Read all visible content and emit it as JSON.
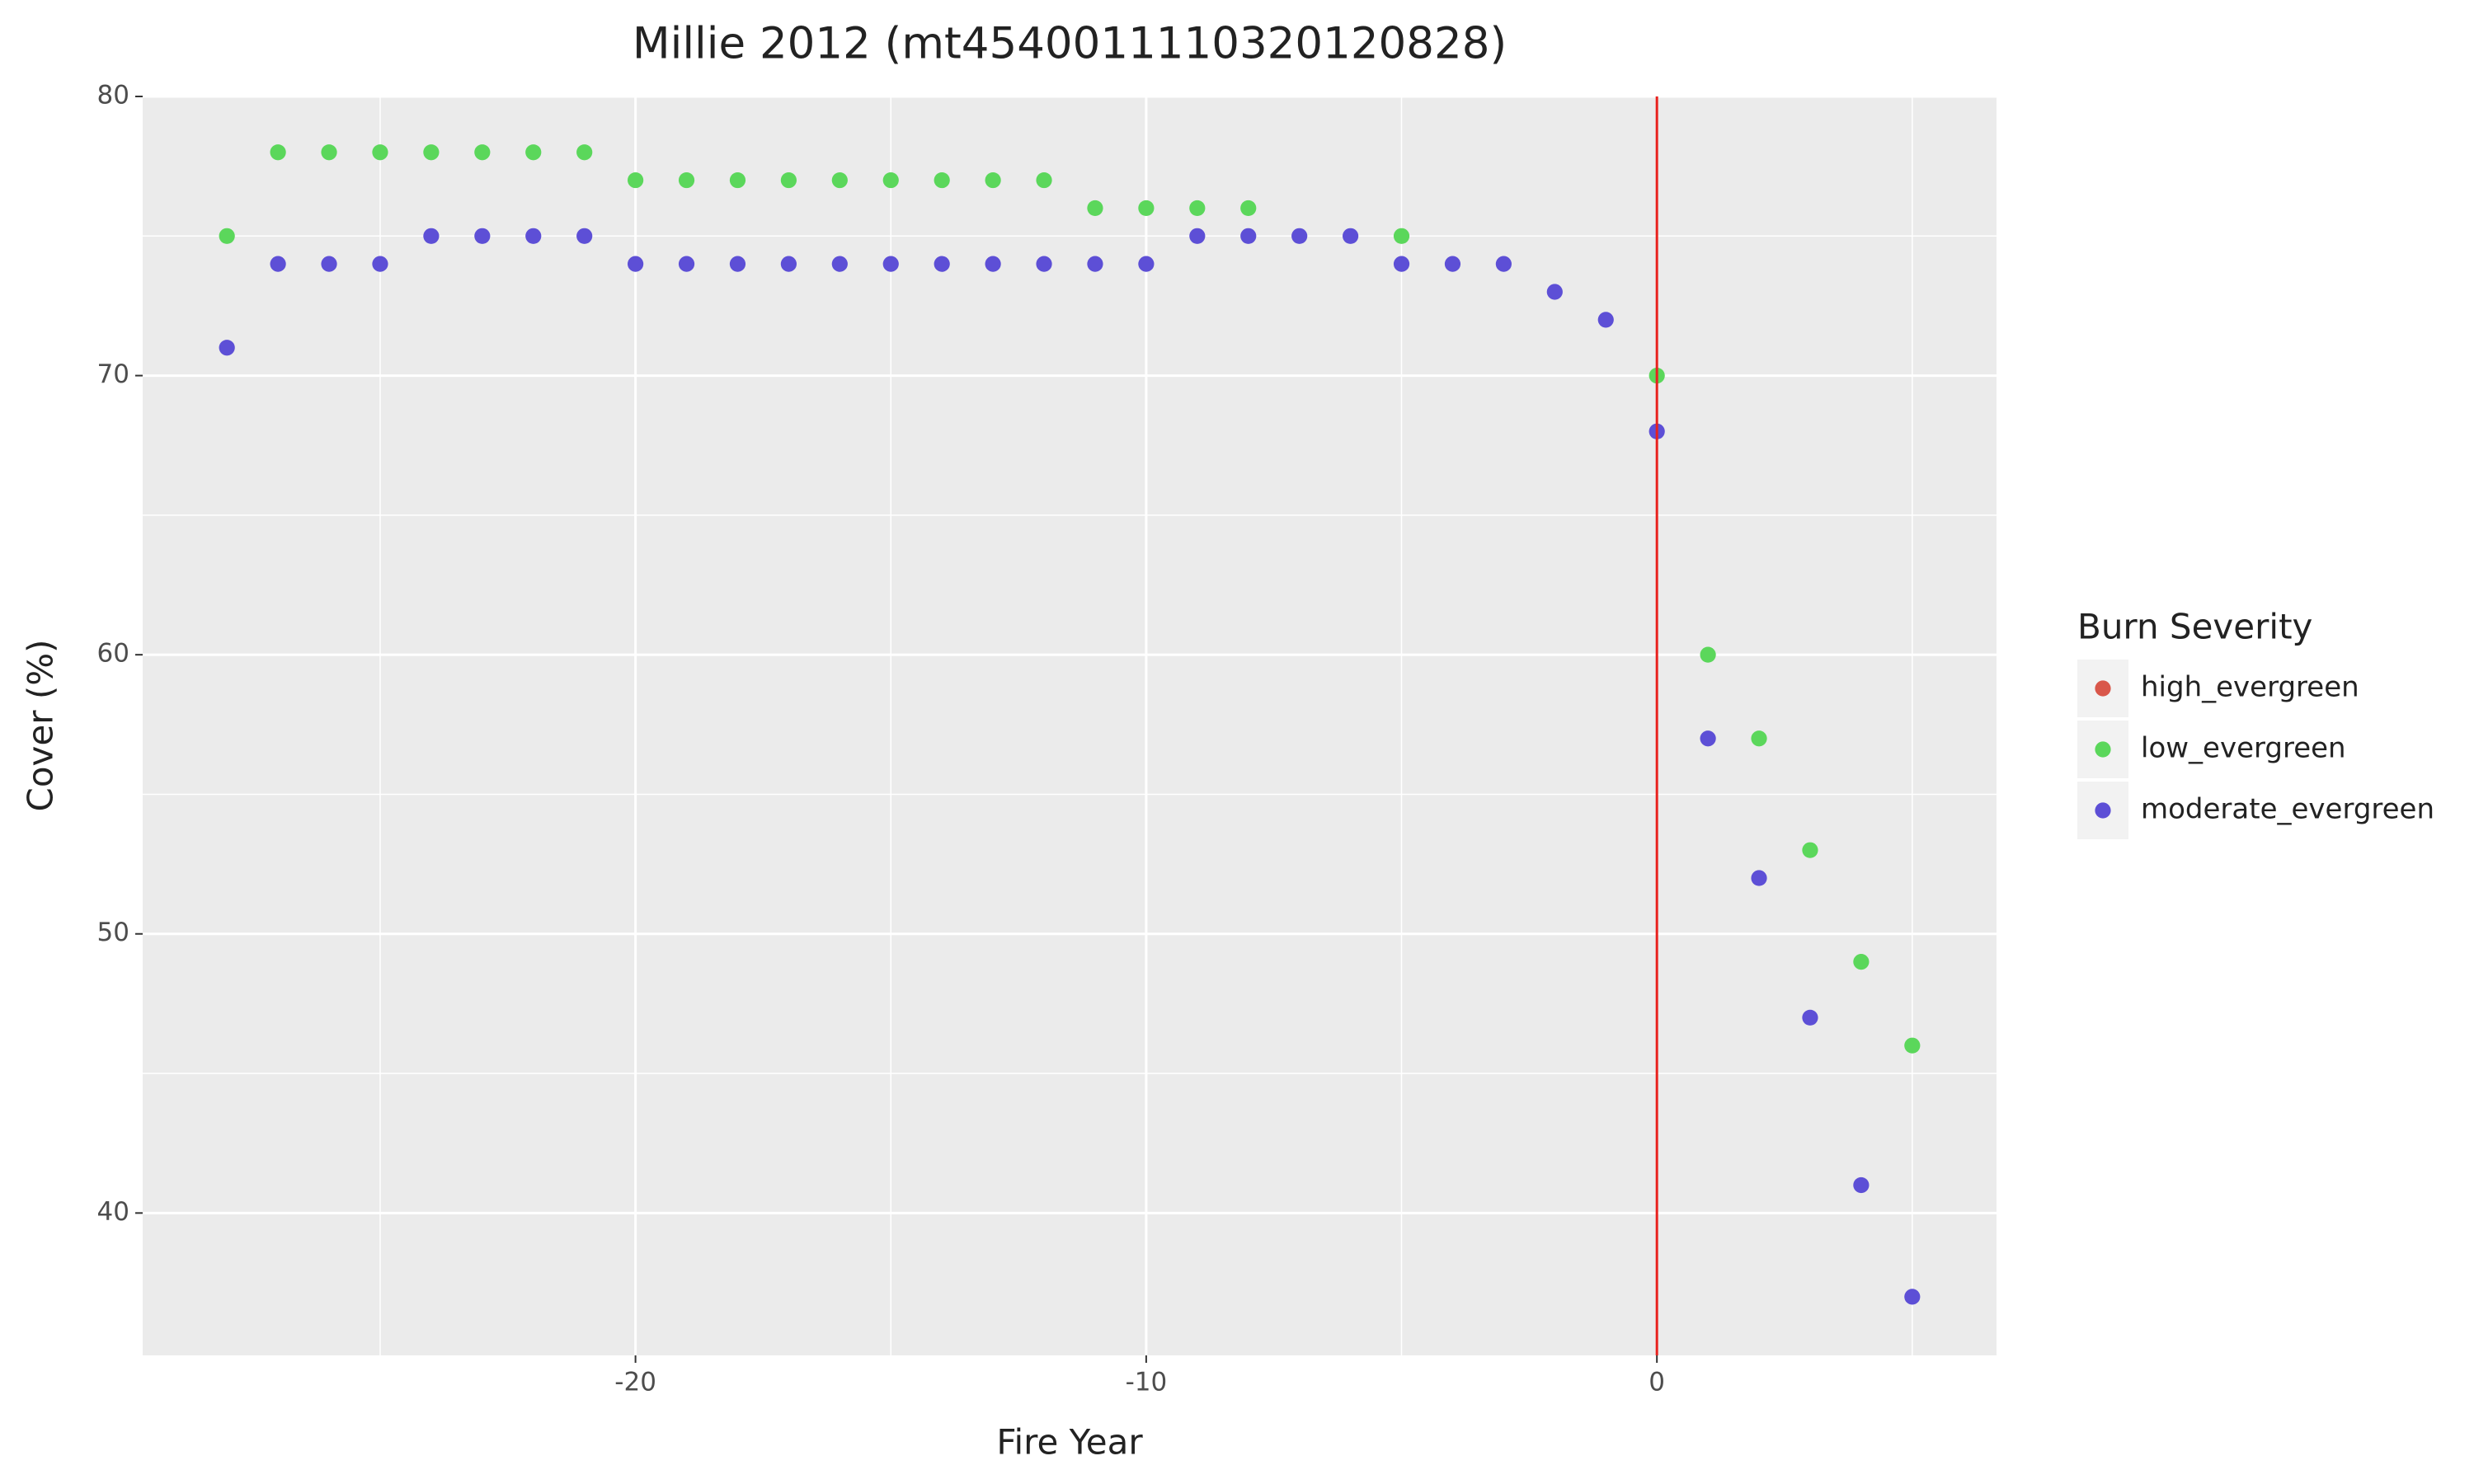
{
  "chart_data": {
    "type": "scatter",
    "title": "Millie 2012 (mt4540011110320120828)",
    "x_label": "Fire Year",
    "y_label": "Cover (%)",
    "legend_title": "Burn Severity",
    "legend_position": "right",
    "xlim": [
      -29.65,
      6.65
    ],
    "ylim": [
      34.9,
      80
    ],
    "xticks": [
      -20,
      -10,
      0
    ],
    "yticks": [
      40,
      50,
      60,
      70,
      80
    ],
    "x_minor_ticks": [
      -25,
      -15,
      -5,
      5
    ],
    "y_minor_ticks": [
      45,
      55,
      65,
      75
    ],
    "grid": true,
    "vline": {
      "x": 0,
      "color": "#e8211d"
    },
    "series": [
      {
        "name": "high_evergreen",
        "color": "#d9574a",
        "x": [],
        "values": []
      },
      {
        "name": "low_evergreen",
        "color": "#5bd75b",
        "x": [
          -28,
          -27,
          -26,
          -25,
          -24,
          -23,
          -22,
          -21,
          -20,
          -19,
          -18,
          -17,
          -16,
          -15,
          -14,
          -13,
          -12,
          -11,
          -10,
          -9,
          -8,
          -5,
          0,
          1,
          2,
          3,
          4,
          5
        ],
        "values": [
          75,
          78,
          78,
          78,
          78,
          78,
          78,
          78,
          77,
          77,
          77,
          77,
          77,
          77,
          77,
          77,
          77,
          76,
          76,
          76,
          76,
          75,
          70,
          60,
          57,
          53,
          49,
          46
        ]
      },
      {
        "name": "moderate_evergreen",
        "color": "#5d4fd6",
        "x": [
          -28,
          -27,
          -26,
          -25,
          -24,
          -23,
          -22,
          -21,
          -20,
          -19,
          -18,
          -17,
          -16,
          -15,
          -14,
          -13,
          -12,
          -11,
          -10,
          -9,
          -8,
          -7,
          -6,
          -5,
          -4,
          -3,
          -2,
          -1,
          0,
          1,
          2,
          3,
          4,
          5
        ],
        "values": [
          71,
          74,
          74,
          74,
          75,
          75,
          75,
          75,
          74,
          74,
          74,
          74,
          74,
          74,
          74,
          74,
          74,
          74,
          74,
          75,
          75,
          75,
          75,
          74,
          74,
          74,
          73,
          72,
          68,
          57,
          52,
          47,
          41,
          37
        ]
      }
    ]
  }
}
